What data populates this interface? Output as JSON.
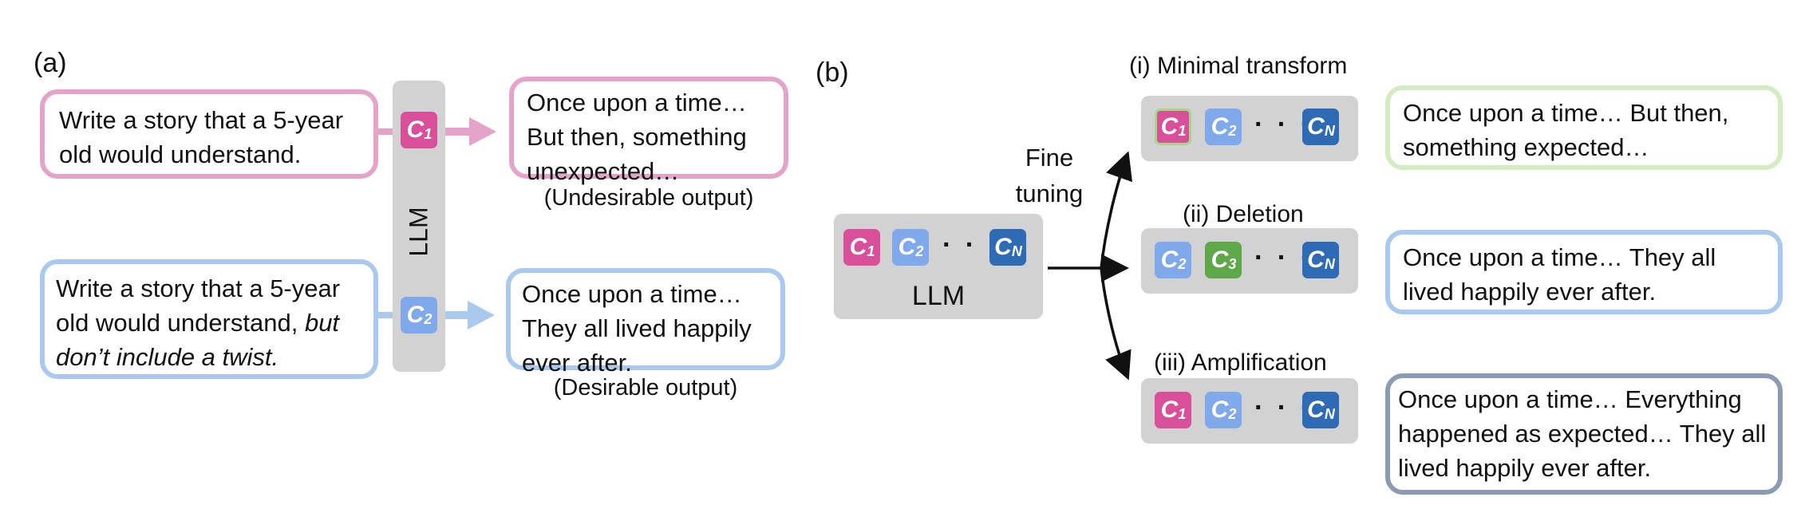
{
  "panel_a": {
    "label": "(a)",
    "llm_label": "LLM",
    "prompt1": "Write a story that a 5-year old would understand.",
    "prompt2_main": "Write a story that a 5-year old would understand,",
    "prompt2_italic": "but don’t include a twist.",
    "output1": "Once upon a time… But then, something unexpected…",
    "output2": "Once upon a time… They all lived happily ever after.",
    "caption1": "(Undesirable output)",
    "caption2": "(Desirable output)",
    "chip1": {
      "letter": "C",
      "sub": "1"
    },
    "chip2": {
      "letter": "C",
      "sub": "2"
    }
  },
  "panel_b": {
    "label": "(b)",
    "llm_label": "LLM",
    "fine_tuning_line1": "Fine",
    "fine_tuning_line2": "tuning",
    "dots": "· · ·",
    "chips": {
      "c1": {
        "letter": "C",
        "sub": "1"
      },
      "c2": {
        "letter": "C",
        "sub": "2"
      },
      "c3": {
        "letter": "C",
        "sub": "3"
      },
      "cn": {
        "letter": "C",
        "sub": "N"
      }
    },
    "branches": [
      {
        "title": "(i) Minimal transform",
        "output": "Once upon a time… But then, something expected…"
      },
      {
        "title": "(ii) Deletion",
        "output": "Once upon a time… They all lived happily ever after."
      },
      {
        "title": "(iii) Amplification",
        "output": "Once upon a time… Everything happened as expected… They all lived happily ever after."
      }
    ]
  },
  "colors": {
    "pink_chip": "#d94f9a",
    "light_blue_chip": "#7fa9ea",
    "dark_blue_chip": "#2f6ab4",
    "green_chip": "#5fa84a",
    "pink_border": "#e6a3c9",
    "blue_border": "#a9c9ee",
    "green_border": "#d3ecc0",
    "slate_border": "#8c9bb4",
    "gray_bar": "#d2d2d2"
  }
}
